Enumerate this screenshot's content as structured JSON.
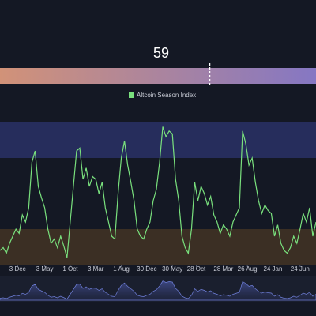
{
  "chart_data": {
    "type": "line",
    "gauge": {
      "value": 59,
      "lim": [
        0,
        100
      ],
      "colors": [
        "#e89a62",
        "#6c6edc"
      ]
    },
    "series": [
      {
        "name": "Altcoin Season Index",
        "color": "#79e07d",
        "values": [
          10,
          12,
          8,
          15,
          20,
          25,
          22,
          35,
          30,
          40,
          72,
          80,
          55,
          47,
          40,
          25,
          15,
          18,
          12,
          20,
          13,
          5,
          30,
          55,
          80,
          82,
          60,
          68,
          55,
          62,
          60,
          50,
          58,
          40,
          30,
          20,
          18,
          50,
          75,
          87,
          70,
          58,
          45,
          25,
          20,
          18,
          25,
          30,
          45,
          53,
          72,
          97,
          90,
          94,
          92,
          60,
          45,
          20,
          12,
          8,
          25,
          58,
          45,
          55,
          50,
          42,
          48,
          35,
          30,
          22,
          28,
          25,
          20,
          30,
          35,
          40,
          94,
          85,
          70,
          75,
          58,
          45,
          36,
          42,
          38,
          36,
          20,
          28,
          15,
          10,
          8,
          12,
          20,
          15,
          25,
          36,
          30,
          40,
          20,
          30
        ]
      }
    ],
    "bands": [
      {
        "from": 75,
        "to": 100,
        "color": "#262d5c"
      },
      {
        "from": 0,
        "to": 25,
        "color": "#3b2f24"
      }
    ],
    "xlim": [
      0,
      99
    ],
    "ylim": [
      0,
      100
    ],
    "xticks": [
      {
        "value": 5.5,
        "label": "3 Dec"
      },
      {
        "value": 14,
        "label": "3 May"
      },
      {
        "value": 22,
        "label": "1 Oct"
      },
      {
        "value": 30,
        "label": "3 Mar"
      },
      {
        "value": 38,
        "label": "1 Aug"
      },
      {
        "value": 46,
        "label": "30 Dec"
      },
      {
        "value": 54,
        "label": "30 May"
      },
      {
        "value": 61.5,
        "label": "28 Oct"
      },
      {
        "value": 70,
        "label": "28 Mar"
      },
      {
        "value": 77.5,
        "label": "26 Aug"
      },
      {
        "value": 85.5,
        "label": "24 Jan"
      },
      {
        "value": 94,
        "label": "24 Jun"
      }
    ],
    "legend": "top"
  }
}
